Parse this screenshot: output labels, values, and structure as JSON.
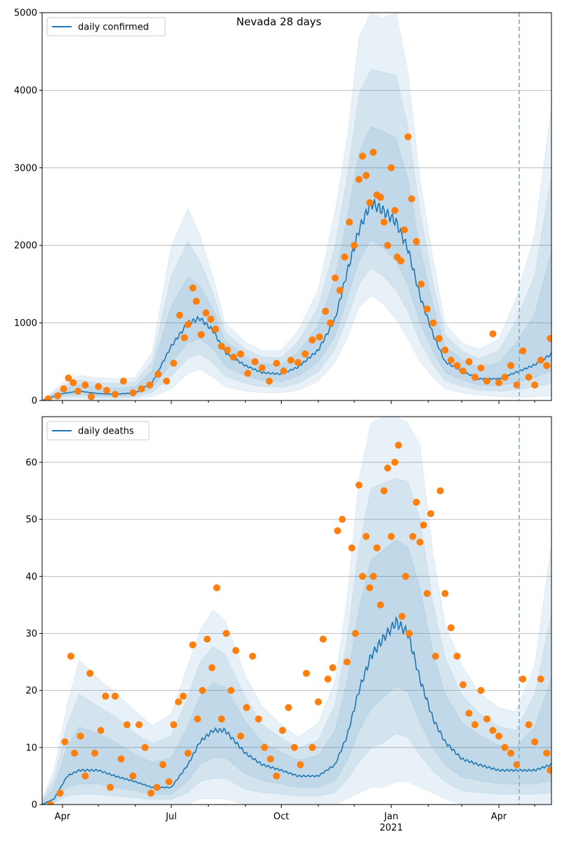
{
  "colors": {
    "line": "#1f77b4",
    "points": "#ff7f0e",
    "band": "#1f77b4",
    "grid": "#b0b0b0",
    "vline": "#7fadc9",
    "legend_border": "#cccccc"
  },
  "chart_data": [
    {
      "type": "line",
      "title": "Nevada 28 days",
      "xlabel": "",
      "ylabel": "",
      "xlim": [
        "2020-03-15",
        "2021-05-15"
      ],
      "ylim": [
        0,
        5000
      ],
      "yticks": [
        0,
        1000,
        2000,
        3000,
        4000,
        5000
      ],
      "grid": "horizontal",
      "legend": {
        "placement": "top-left",
        "entries": [
          "daily confirmed"
        ]
      },
      "vertical_line": "2021-04-18",
      "series": [
        {
          "name": "daily confirmed",
          "kind": "model-median-with-bands",
          "x": [
            "2020-03-15",
            "2020-04-01",
            "2020-04-15",
            "2020-05-01",
            "2020-05-15",
            "2020-06-01",
            "2020-06-15",
            "2020-07-01",
            "2020-07-15",
            "2020-07-25",
            "2020-08-05",
            "2020-08-15",
            "2020-09-01",
            "2020-09-15",
            "2020-10-01",
            "2020-10-15",
            "2020-11-01",
            "2020-11-15",
            "2020-11-25",
            "2020-12-05",
            "2020-12-15",
            "2020-12-25",
            "2021-01-05",
            "2021-01-15",
            "2021-01-25",
            "2021-02-05",
            "2021-02-15",
            "2021-03-01",
            "2021-03-15",
            "2021-04-01",
            "2021-04-15",
            "2021-05-01",
            "2021-05-15"
          ],
          "values": [
            0,
            90,
            120,
            90,
            80,
            100,
            230,
            700,
            1000,
            1060,
            900,
            620,
            450,
            360,
            340,
            430,
            650,
            1050,
            1650,
            2200,
            2550,
            2450,
            2300,
            1950,
            1350,
            850,
            500,
            380,
            280,
            280,
            360,
            460,
            600
          ],
          "band_hi": [
            0,
            220,
            330,
            290,
            280,
            300,
            620,
            2000,
            2500,
            2100,
            1600,
            1000,
            750,
            650,
            640,
            900,
            1450,
            2400,
            3400,
            4700,
            5000,
            5000,
            5000,
            4200,
            2900,
            1800,
            1000,
            750,
            650,
            800,
            1300,
            2100,
            3900
          ],
          "band_lo": [
            0,
            10,
            20,
            10,
            10,
            20,
            50,
            150,
            350,
            400,
            300,
            180,
            120,
            100,
            100,
            130,
            250,
            500,
            800,
            1200,
            1350,
            1250,
            1050,
            800,
            500,
            300,
            150,
            100,
            70,
            50,
            40,
            50,
            60
          ]
        }
      ],
      "observed_points": {
        "color": "orange",
        "x": [
          "2020-03-20",
          "2020-03-28",
          "2020-04-02",
          "2020-04-06",
          "2020-04-10",
          "2020-04-14",
          "2020-04-20",
          "2020-04-25",
          "2020-05-01",
          "2020-05-08",
          "2020-05-15",
          "2020-05-22",
          "2020-05-30",
          "2020-06-06",
          "2020-06-13",
          "2020-06-20",
          "2020-06-27",
          "2020-07-03",
          "2020-07-08",
          "2020-07-12",
          "2020-07-15",
          "2020-07-19",
          "2020-07-22",
          "2020-07-26",
          "2020-07-30",
          "2020-08-03",
          "2020-08-07",
          "2020-08-12",
          "2020-08-17",
          "2020-08-22",
          "2020-08-28",
          "2020-09-03",
          "2020-09-09",
          "2020-09-15",
          "2020-09-21",
          "2020-09-27",
          "2020-10-03",
          "2020-10-09",
          "2020-10-15",
          "2020-10-21",
          "2020-10-27",
          "2020-11-02",
          "2020-11-07",
          "2020-11-11",
          "2020-11-15",
          "2020-11-19",
          "2020-11-23",
          "2020-11-27",
          "2020-12-01",
          "2020-12-05",
          "2020-12-08",
          "2020-12-11",
          "2020-12-14",
          "2020-12-17",
          "2020-12-20",
          "2020-12-23",
          "2020-12-26",
          "2020-12-29",
          "2021-01-01",
          "2021-01-04",
          "2021-01-06",
          "2021-01-09",
          "2021-01-12",
          "2021-01-15",
          "2021-01-18",
          "2021-01-22",
          "2021-01-26",
          "2021-01-31",
          "2021-02-05",
          "2021-02-10",
          "2021-02-15",
          "2021-02-20",
          "2021-02-25",
          "2021-03-02",
          "2021-03-07",
          "2021-03-12",
          "2021-03-17",
          "2021-03-22",
          "2021-03-27",
          "2021-04-01",
          "2021-04-06",
          "2021-04-11",
          "2021-04-16",
          "2021-04-21",
          "2021-04-26",
          "2021-05-01",
          "2021-05-06",
          "2021-05-11",
          "2021-05-14"
        ],
        "y": [
          20,
          60,
          150,
          290,
          230,
          120,
          200,
          50,
          180,
          130,
          80,
          250,
          100,
          150,
          200,
          340,
          250,
          480,
          1100,
          810,
          980,
          1450,
          1280,
          850,
          1130,
          1050,
          920,
          700,
          650,
          560,
          600,
          350,
          500,
          420,
          250,
          480,
          380,
          520,
          490,
          600,
          780,
          820,
          1150,
          1000,
          1580,
          1420,
          1850,
          2300,
          2000,
          2850,
          3150,
          2900,
          2550,
          3200,
          2650,
          2620,
          2300,
          2000,
          3000,
          2450,
          1850,
          1800,
          2200,
          3400,
          2600,
          2050,
          1500,
          1180,
          1000,
          800,
          650,
          520,
          450,
          380,
          500,
          300,
          420,
          250,
          860,
          230,
          300,
          450,
          200,
          640,
          300,
          200,
          520,
          450,
          800
        ]
      }
    },
    {
      "type": "line",
      "title": "",
      "xlabel": "",
      "ylabel": "",
      "xlim": [
        "2020-03-15",
        "2021-05-15"
      ],
      "ylim": [
        0,
        68
      ],
      "yticks": [
        0,
        10,
        20,
        30,
        40,
        50,
        60
      ],
      "xticks": [
        "2020-04-01",
        "2020-07-01",
        "2020-10-01",
        "2021-01-01",
        "2021-04-01"
      ],
      "xticklabels": [
        "Apr",
        "Jul",
        "Oct",
        "Jan",
        "Apr"
      ],
      "xyearlabel": {
        "at": "2021-01-01",
        "text": "2021"
      },
      "grid": "horizontal",
      "legend": {
        "placement": "top-left",
        "entries": [
          "daily deaths"
        ]
      },
      "vertical_line": "2021-04-18",
      "series": [
        {
          "name": "daily deaths",
          "kind": "model-median-with-bands",
          "x": [
            "2020-03-15",
            "2020-03-25",
            "2020-04-05",
            "2020-04-15",
            "2020-05-01",
            "2020-05-15",
            "2020-06-01",
            "2020-06-15",
            "2020-07-01",
            "2020-07-15",
            "2020-07-25",
            "2020-08-05",
            "2020-08-15",
            "2020-09-01",
            "2020-09-15",
            "2020-10-01",
            "2020-10-15",
            "2020-11-01",
            "2020-11-15",
            "2020-11-25",
            "2020-12-05",
            "2020-12-15",
            "2020-12-25",
            "2021-01-05",
            "2021-01-15",
            "2021-01-25",
            "2021-02-05",
            "2021-02-15",
            "2021-03-01",
            "2021-03-15",
            "2021-04-01",
            "2021-04-15",
            "2021-05-01",
            "2021-05-15"
          ],
          "values": [
            0,
            1,
            5,
            6,
            6,
            5,
            4,
            3,
            3,
            7,
            11,
            13,
            13,
            9,
            7,
            6,
            5,
            5,
            7,
            12,
            20,
            26,
            29,
            32,
            30,
            22,
            15,
            11,
            8,
            7,
            6,
            6,
            6,
            7
          ],
          "band_hi": [
            1,
            6,
            18,
            25,
            22,
            20,
            16,
            14,
            16,
            24,
            31,
            34,
            32,
            23,
            17,
            14,
            12,
            14,
            22,
            36,
            56,
            68,
            68,
            68,
            68,
            62,
            44,
            32,
            24,
            20,
            17,
            16,
            25,
            45
          ],
          "band_lo": [
            0,
            0,
            0,
            0,
            0,
            0,
            0,
            0,
            0,
            0,
            1,
            1,
            1,
            0,
            0,
            0,
            0,
            0,
            0,
            1,
            2,
            3,
            3,
            4,
            4,
            3,
            2,
            1,
            0,
            0,
            0,
            0,
            0,
            0
          ]
        }
      ],
      "observed_points": {
        "color": "orange",
        "x": [
          "2020-03-22",
          "2020-03-30",
          "2020-04-03",
          "2020-04-08",
          "2020-04-11",
          "2020-04-16",
          "2020-04-20",
          "2020-04-24",
          "2020-04-28",
          "2020-05-03",
          "2020-05-07",
          "2020-05-11",
          "2020-05-15",
          "2020-05-20",
          "2020-05-25",
          "2020-05-30",
          "2020-06-04",
          "2020-06-09",
          "2020-06-14",
          "2020-06-19",
          "2020-06-24",
          "2020-06-29",
          "2020-07-03",
          "2020-07-07",
          "2020-07-11",
          "2020-07-15",
          "2020-07-19",
          "2020-07-23",
          "2020-07-27",
          "2020-07-31",
          "2020-08-04",
          "2020-08-08",
          "2020-08-12",
          "2020-08-16",
          "2020-08-20",
          "2020-08-24",
          "2020-08-28",
          "2020-09-02",
          "2020-09-07",
          "2020-09-12",
          "2020-09-17",
          "2020-09-22",
          "2020-09-27",
          "2020-10-02",
          "2020-10-07",
          "2020-10-12",
          "2020-10-17",
          "2020-10-22",
          "2020-10-27",
          "2020-11-01",
          "2020-11-05",
          "2020-11-09",
          "2020-11-13",
          "2020-11-17",
          "2020-11-21",
          "2020-11-25",
          "2020-11-29",
          "2020-12-02",
          "2020-12-05",
          "2020-12-08",
          "2020-12-11",
          "2020-12-14",
          "2020-12-17",
          "2020-12-20",
          "2020-12-23",
          "2020-12-26",
          "2020-12-29",
          "2021-01-01",
          "2021-01-04",
          "2021-01-07",
          "2021-01-10",
          "2021-01-13",
          "2021-01-16",
          "2021-01-19",
          "2021-01-22",
          "2021-01-25",
          "2021-01-28",
          "2021-01-31",
          "2021-02-03",
          "2021-02-07",
          "2021-02-11",
          "2021-02-15",
          "2021-02-20",
          "2021-02-25",
          "2021-03-02",
          "2021-03-07",
          "2021-03-12",
          "2021-03-17",
          "2021-03-22",
          "2021-03-27",
          "2021-04-01",
          "2021-04-06",
          "2021-04-11",
          "2021-04-16",
          "2021-04-21",
          "2021-04-26",
          "2021-05-01",
          "2021-05-06",
          "2021-05-11",
          "2021-05-14"
        ],
        "y": [
          0,
          2,
          11,
          26,
          9,
          12,
          5,
          23,
          9,
          13,
          19,
          3,
          19,
          8,
          14,
          5,
          14,
          10,
          2,
          3,
          7,
          4,
          14,
          18,
          19,
          9,
          28,
          15,
          20,
          29,
          24,
          38,
          15,
          30,
          20,
          27,
          12,
          17,
          26,
          15,
          10,
          8,
          5,
          13,
          17,
          10,
          7,
          23,
          10,
          18,
          29,
          22,
          24,
          48,
          50,
          25,
          45,
          30,
          56,
          40,
          47,
          38,
          40,
          45,
          35,
          55,
          59,
          47,
          60,
          63,
          33,
          40,
          30,
          47,
          53,
          46,
          49,
          37,
          51,
          26,
          55,
          37,
          31,
          26,
          21,
          16,
          14,
          20,
          15,
          13,
          12,
          10,
          9,
          7,
          22,
          14,
          11,
          22,
          9,
          6
        ]
      }
    }
  ]
}
